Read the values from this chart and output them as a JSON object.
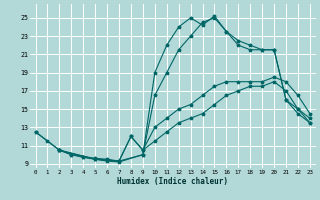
{
  "xlabel": "Humidex (Indice chaleur)",
  "bg_color": "#b2d8d8",
  "grid_color": "#ffffff",
  "line_color": "#006666",
  "xlim": [
    -0.5,
    23.5
  ],
  "ylim": [
    8.5,
    26.5
  ],
  "yticks": [
    9,
    11,
    13,
    15,
    17,
    19,
    21,
    23,
    25
  ],
  "xticks": [
    0,
    1,
    2,
    3,
    4,
    5,
    6,
    7,
    8,
    9,
    10,
    11,
    12,
    13,
    14,
    15,
    16,
    17,
    18,
    19,
    20,
    21,
    22,
    23
  ],
  "lines": [
    {
      "x": [
        0,
        1,
        2,
        3,
        4,
        5,
        6,
        7,
        9,
        10,
        11,
        12,
        13,
        14,
        15,
        16,
        17,
        18,
        19,
        20,
        21,
        22,
        23
      ],
      "y": [
        12.5,
        11.5,
        10.5,
        10.0,
        9.7,
        9.5,
        9.3,
        9.2,
        10.0,
        19.0,
        22.0,
        24.0,
        25.0,
        24.2,
        25.2,
        23.5,
        22.5,
        22.0,
        21.5,
        21.5,
        16.0,
        14.5,
        13.5
      ]
    },
    {
      "x": [
        0,
        2,
        3,
        4,
        5,
        6,
        7,
        9,
        10,
        11,
        12,
        13,
        14,
        15,
        16,
        17,
        18,
        19,
        20,
        21,
        22,
        23
      ],
      "y": [
        12.5,
        10.5,
        10.0,
        9.8,
        9.6,
        9.5,
        9.3,
        10.0,
        16.5,
        19.0,
        21.5,
        23.0,
        24.5,
        25.0,
        23.5,
        22.0,
        21.5,
        21.5,
        21.5,
        16.0,
        15.0,
        14.0
      ]
    },
    {
      "x": [
        2,
        5,
        7,
        8,
        9,
        10,
        11,
        12,
        13,
        14,
        15,
        16,
        17,
        18,
        19,
        20,
        21,
        22,
        23
      ],
      "y": [
        10.5,
        9.5,
        9.3,
        12.0,
        10.5,
        13.0,
        14.0,
        15.0,
        15.5,
        16.5,
        17.5,
        18.0,
        18.0,
        18.0,
        18.0,
        18.5,
        18.0,
        16.5,
        14.5
      ]
    },
    {
      "x": [
        2,
        5,
        7,
        8,
        9,
        10,
        11,
        12,
        13,
        14,
        15,
        16,
        17,
        18,
        19,
        20,
        21,
        22,
        23
      ],
      "y": [
        10.5,
        9.5,
        9.3,
        12.0,
        10.5,
        11.5,
        12.5,
        13.5,
        14.0,
        14.5,
        15.5,
        16.5,
        17.0,
        17.5,
        17.5,
        18.0,
        17.0,
        15.0,
        13.5
      ]
    }
  ]
}
